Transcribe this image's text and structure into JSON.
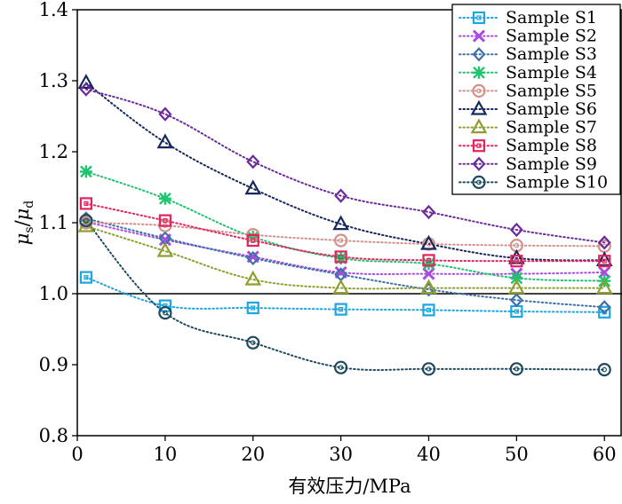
{
  "chart_data": {
    "type": "line",
    "title": "",
    "xlabel": "有效压力/MPa",
    "ylabel": {
      "main": "μ",
      "sub_s": "s",
      "slash": "/",
      "main2": "μ",
      "sub_d": "d"
    },
    "xlim": [
      0,
      62
    ],
    "ylim": [
      0.8,
      1.4
    ],
    "xticks": [
      0,
      10,
      20,
      30,
      40,
      50,
      60
    ],
    "xtick_labels": [
      "0",
      "10",
      "20",
      "30",
      "40",
      "50",
      "60"
    ],
    "yticks": [
      0.8,
      0.9,
      1.0,
      1.1,
      1.2,
      1.3,
      1.4
    ],
    "ytick_labels": [
      "0.8",
      "0.9",
      "1.0",
      "1.1",
      "1.2",
      "1.3",
      "1.4"
    ],
    "reference_line": 1.0,
    "grid": false,
    "legend_position": "top-right",
    "x": [
      1,
      10,
      20,
      30,
      40,
      50,
      60
    ],
    "series": [
      {
        "name": "Sample S1",
        "marker": "square",
        "color": "#1aa6e0",
        "values": [
          1.023,
          0.983,
          0.98,
          0.978,
          0.977,
          0.975,
          0.974
        ]
      },
      {
        "name": "Sample S2",
        "marker": "x",
        "color": "#a84be0",
        "values": [
          1.101,
          1.076,
          1.052,
          1.03,
          1.028,
          1.028,
          1.03
        ]
      },
      {
        "name": "Sample S3",
        "marker": "diamond",
        "color": "#3d70a8",
        "values": [
          1.106,
          1.078,
          1.05,
          1.027,
          1.006,
          0.991,
          0.981
        ]
      },
      {
        "name": "Sample S4",
        "marker": "star",
        "color": "#1fc46e",
        "values": [
          1.172,
          1.134,
          1.08,
          1.05,
          1.042,
          1.022,
          1.018
        ]
      },
      {
        "name": "Sample S5",
        "marker": "circle",
        "color": "#d4908a",
        "values": [
          1.1,
          1.096,
          1.083,
          1.075,
          1.07,
          1.068,
          1.067
        ]
      },
      {
        "name": "Sample S6",
        "marker": "triangle",
        "color": "#16285e",
        "values": [
          1.297,
          1.213,
          1.148,
          1.098,
          1.07,
          1.05,
          1.047
        ]
      },
      {
        "name": "Sample S7",
        "marker": "triangle",
        "color": "#8f9e2e",
        "values": [
          1.095,
          1.06,
          1.02,
          1.008,
          1.008,
          1.008,
          1.008
        ]
      },
      {
        "name": "Sample S8",
        "marker": "square",
        "color": "#e6225e",
        "values": [
          1.127,
          1.103,
          1.075,
          1.052,
          1.047,
          1.046,
          1.046
        ]
      },
      {
        "name": "Sample S9",
        "marker": "diamond",
        "color": "#6d2a9a",
        "values": [
          1.288,
          1.253,
          1.186,
          1.138,
          1.115,
          1.09,
          1.072
        ]
      },
      {
        "name": "Sample S10",
        "marker": "circle",
        "color": "#1d4a5e",
        "values": [
          1.103,
          0.973,
          0.931,
          0.896,
          0.894,
          0.894,
          0.893
        ]
      }
    ]
  }
}
